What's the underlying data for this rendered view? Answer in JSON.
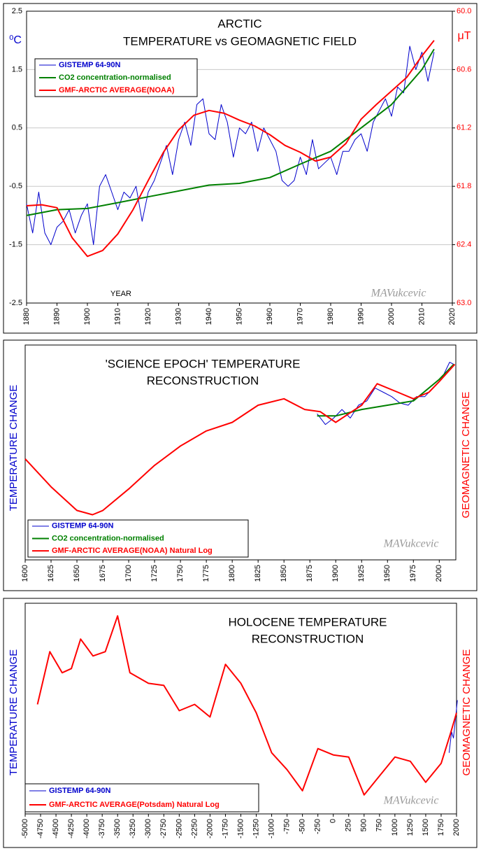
{
  "chart_data": [
    {
      "type": "line",
      "title": [
        "ARCTIC",
        "TEMPERATURE vs GEOMAGNETIC FIELD"
      ],
      "ylabel": "⁰C",
      "y2label": "μT",
      "annotations": [
        "YEAR",
        "MAVukcevic"
      ],
      "xlim": [
        1880,
        2020
      ],
      "xticks": [
        1880,
        1890,
        1900,
        1910,
        1920,
        1930,
        1940,
        1950,
        1960,
        1970,
        1980,
        1990,
        2000,
        2010,
        2020
      ],
      "ylim": [
        -2.5,
        2.5
      ],
      "yticks": [
        -2.5,
        -1.5,
        -0.5,
        0.5,
        1.5,
        2.5
      ],
      "y2lim": [
        63,
        60
      ],
      "y2ticks": [
        {
          "value": 60,
          "label": "60.0"
        },
        60.6,
        61.2,
        61.8,
        62.4,
        {
          "value": 63,
          "label": "63.0"
        }
      ],
      "grid": true,
      "series": [
        {
          "name": "GISTEMP 64-90N",
          "color": "#0000cc",
          "x": [
            1880,
            1882,
            1884,
            1886,
            1888,
            1890,
            1892,
            1894,
            1896,
            1898,
            1900,
            1902,
            1904,
            1906,
            1908,
            1910,
            1912,
            1914,
            1916,
            1918,
            1920,
            1922,
            1924,
            1926,
            1928,
            1930,
            1932,
            1934,
            1936,
            1938,
            1940,
            1942,
            1944,
            1946,
            1948,
            1950,
            1952,
            1954,
            1956,
            1958,
            1960,
            1962,
            1964,
            1966,
            1968,
            1970,
            1972,
            1974,
            1976,
            1978,
            1980,
            1982,
            1984,
            1986,
            1988,
            1990,
            1992,
            1994,
            1996,
            1998,
            2000,
            2002,
            2004,
            2006,
            2008,
            2010,
            2012,
            2014
          ],
          "values": [
            -0.8,
            -1.3,
            -0.6,
            -1.3,
            -1.5,
            -1.2,
            -1.1,
            -0.9,
            -1.3,
            -1.0,
            -0.8,
            -1.5,
            -0.5,
            -0.3,
            -0.6,
            -0.9,
            -0.6,
            -0.7,
            -0.5,
            -1.1,
            -0.6,
            -0.4,
            -0.1,
            0.2,
            -0.3,
            0.3,
            0.6,
            0.2,
            0.9,
            1.0,
            0.4,
            0.3,
            0.9,
            0.6,
            0.0,
            0.5,
            0.4,
            0.6,
            0.1,
            0.5,
            0.3,
            0.1,
            -0.4,
            -0.5,
            -0.4,
            0.0,
            -0.3,
            0.3,
            -0.2,
            -0.1,
            0.0,
            -0.3,
            0.1,
            0.1,
            0.3,
            0.4,
            0.1,
            0.6,
            0.8,
            1.0,
            0.7,
            1.2,
            1.1,
            1.9,
            1.5,
            1.8,
            1.3,
            1.8
          ]
        },
        {
          "name": "CO2 concentration-normalised",
          "color": "#008000",
          "x": [
            1880,
            1890,
            1900,
            1910,
            1920,
            1930,
            1940,
            1950,
            1960,
            1970,
            1980,
            1990,
            2000,
            2010,
            2014
          ],
          "values": [
            -1.0,
            -0.9,
            -0.88,
            -0.78,
            -0.68,
            -0.58,
            -0.48,
            -0.45,
            -0.35,
            -0.12,
            0.1,
            0.5,
            0.9,
            1.5,
            1.85
          ]
        },
        {
          "name": "GMF-ARCTIC AVERAGE(NOAA)",
          "color": "#ff0000",
          "axis": "y2",
          "x": [
            1880,
            1885,
            1890,
            1895,
            1900,
            1905,
            1910,
            1915,
            1920,
            1925,
            1930,
            1935,
            1940,
            1945,
            1950,
            1955,
            1960,
            1965,
            1970,
            1975,
            1980,
            1985,
            1990,
            1995,
            2000,
            2005,
            2010,
            2014
          ],
          "values": [
            62.0,
            61.99,
            62.02,
            62.33,
            62.52,
            62.46,
            62.29,
            62.04,
            61.74,
            61.45,
            61.22,
            61.07,
            61.02,
            61.05,
            61.12,
            61.18,
            61.27,
            61.38,
            61.45,
            61.54,
            61.5,
            61.36,
            61.11,
            60.96,
            60.82,
            60.68,
            60.46,
            60.3
          ]
        }
      ]
    },
    {
      "type": "line",
      "title": [
        "'SCIENCE EPOCH' TEMPERATURE",
        "RECONSTRUCTION"
      ],
      "ylabel": "TEMPERATURE CHANGE",
      "y2label": "GEOMAGNETIC CHANGE",
      "annotations": [
        "MAVukcevic"
      ],
      "xlim": [
        1600,
        2016
      ],
      "xticks": [
        1600,
        1625,
        1650,
        1675,
        1700,
        1725,
        1750,
        1775,
        1800,
        1825,
        1850,
        1875,
        1900,
        1925,
        1950,
        1975,
        2000
      ],
      "ylim": [
        0,
        100
      ],
      "series": [
        {
          "name": "GISTEMP 64-90N",
          "color": "#0000cc",
          "x": [
            1882,
            1890,
            1898,
            1906,
            1914,
            1922,
            1930,
            1938,
            1946,
            1954,
            1962,
            1970,
            1978,
            1986,
            1994,
            2002,
            2010,
            2014
          ],
          "values": [
            68,
            63,
            66,
            70,
            66,
            72,
            74,
            80,
            78,
            76,
            73,
            72,
            76,
            76,
            80,
            84,
            92,
            91
          ]
        },
        {
          "name": "CO2 concentration-normalised",
          "color": "#008000",
          "x": [
            1882,
            1900,
            1925,
            1950,
            1975,
            2000,
            2014
          ],
          "values": [
            67,
            67,
            70,
            72,
            74,
            84,
            91
          ]
        },
        {
          "name": "GMF-ARCTIC AVERAGE(NOAA) Natural Log",
          "color": "#ff0000",
          "x": [
            1600,
            1625,
            1650,
            1665,
            1675,
            1700,
            1725,
            1750,
            1775,
            1800,
            1825,
            1850,
            1870,
            1885,
            1900,
            1925,
            1940,
            1960,
            1975,
            1990,
            2000,
            2015
          ],
          "values": [
            47,
            34,
            23,
            21,
            23,
            33,
            44,
            53,
            60,
            64,
            72,
            75,
            70,
            69,
            64,
            72,
            82,
            78,
            75,
            78,
            83,
            91
          ]
        }
      ]
    },
    {
      "type": "line",
      "title": [
        "HOLOCENE TEMPERATURE",
        "RECONSTRUCTION"
      ],
      "ylabel": "TEMPERATURE CHANGE",
      "y2label": "GEOMAGNETIC CHANGE",
      "annotations": [
        "MAVukcevic"
      ],
      "xlim": [
        -5000,
        2000
      ],
      "xticks": [
        -5000,
        -4750,
        -4500,
        -4250,
        -4000,
        -3750,
        -3500,
        -3250,
        -3000,
        -2750,
        -2500,
        -2250,
        -2000,
        -1750,
        -1500,
        -1250,
        -1000,
        -750,
        -500,
        -250,
        0,
        250,
        500,
        750,
        1000,
        1250,
        1500,
        1750,
        2000
      ],
      "ylim": [
        0,
        100
      ],
      "series": [
        {
          "name": "GISTEMP 64-90N",
          "color": "#0000cc",
          "x": [
            1880,
            1920,
            1950,
            1980,
            2014
          ],
          "values": [
            29,
            39,
            36,
            44,
            54
          ]
        },
        {
          "name": "GMF-ARCTIC AVERAGE(Potsdam) Natural Log",
          "color": "#ff0000",
          "x": [
            -4800,
            -4600,
            -4400,
            -4250,
            -4100,
            -3900,
            -3700,
            -3500,
            -3300,
            -3000,
            -2750,
            -2500,
            -2250,
            -2000,
            -1750,
            -1500,
            -1250,
            -1000,
            -750,
            -500,
            -250,
            0,
            250,
            500,
            750,
            1000,
            1250,
            1500,
            1750,
            1900,
            2000
          ],
          "values": [
            52,
            77,
            67,
            69,
            83,
            75,
            77,
            94,
            67,
            62,
            61,
            49,
            52,
            46,
            71,
            62,
            48,
            29,
            21,
            11,
            31,
            28,
            27,
            9,
            18,
            27,
            25,
            15,
            24,
            38,
            48
          ]
        }
      ]
    }
  ]
}
